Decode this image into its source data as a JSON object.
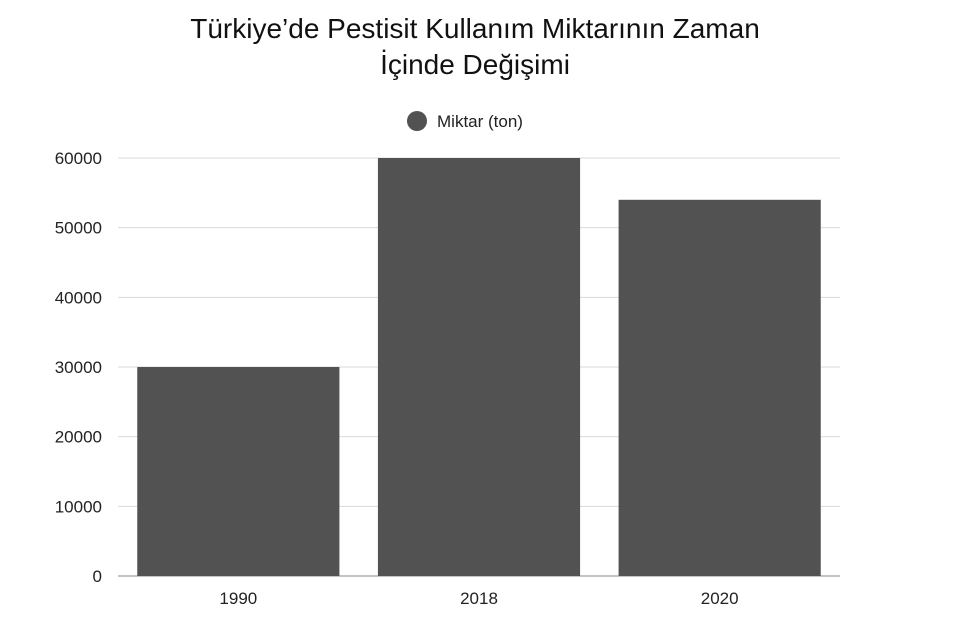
{
  "chart_data": {
    "type": "bar",
    "title_lines": [
      "Türkiye’de Pestisit Kullanım Miktarının Zaman",
      "İçinde Değişimi"
    ],
    "categories": [
      "1990",
      "2018",
      "2020"
    ],
    "series": [
      {
        "name": "Miktar (ton)",
        "values": [
          30000,
          60000,
          54000
        ],
        "color": "#525252"
      }
    ],
    "ylim": [
      0,
      60000
    ],
    "yticks": [
      0,
      10000,
      20000,
      30000,
      40000,
      50000,
      60000
    ],
    "grid": true,
    "legend_position": "top-center",
    "xlabel": "",
    "ylabel": ""
  }
}
